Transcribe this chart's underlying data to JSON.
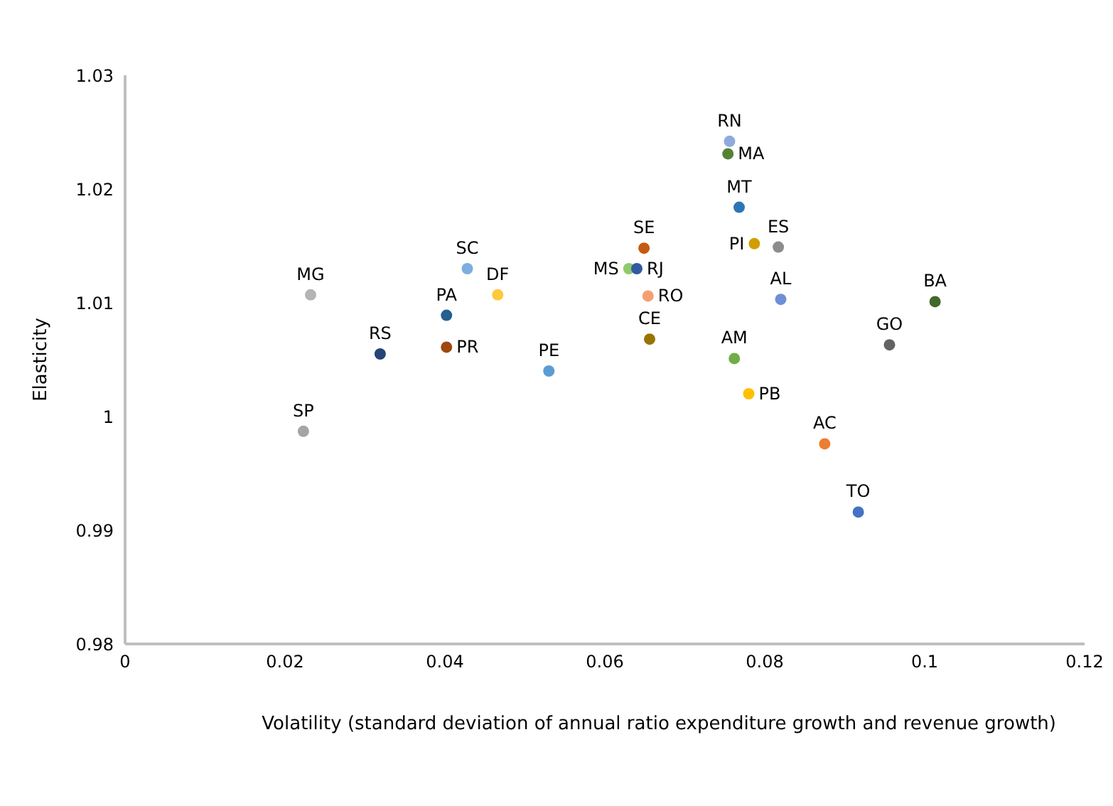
{
  "chart_data": {
    "type": "scatter",
    "xlabel": "Volatility (standard deviation of annual ratio expenditure growth and revenue growth)",
    "ylabel": "Elasticity",
    "xlim": [
      0,
      0.12
    ],
    "xticks": [
      0,
      0.02,
      0.04,
      0.06,
      0.08,
      0.1,
      0.12
    ],
    "ylim": [
      0.98,
      1.03
    ],
    "yticks": [
      0.98,
      0.99,
      1,
      1.01,
      1.02,
      1.03
    ],
    "grid": false,
    "legend": false,
    "marker": "circle",
    "series": [
      {
        "name": "SP",
        "color": "#a5a5a5",
        "x": [
          0.0223
        ],
        "values": [
          0.9987
        ]
      },
      {
        "name": "MG",
        "color": "#b4b4b4",
        "x": [
          0.0232
        ],
        "values": [
          1.0107
        ]
      },
      {
        "name": "RS",
        "color": "#264478",
        "x": [
          0.0319
        ],
        "values": [
          1.0055
        ]
      },
      {
        "name": "PA",
        "color": "#255e91",
        "x": [
          0.0402
        ],
        "values": [
          1.0089
        ]
      },
      {
        "name": "PR",
        "color": "#9e480e",
        "x": [
          0.0402
        ],
        "values": [
          1.0061
        ]
      },
      {
        "name": "SC",
        "color": "#7cafdd",
        "x": [
          0.0428
        ],
        "values": [
          1.013
        ]
      },
      {
        "name": "DF",
        "color": "#ffc93c",
        "x": [
          0.0466
        ],
        "values": [
          1.0107
        ]
      },
      {
        "name": "PE",
        "color": "#5b9bd5",
        "x": [
          0.053
        ],
        "values": [
          1.004
        ]
      },
      {
        "name": "MS",
        "color": "#8fca6e",
        "x": [
          0.063
        ],
        "values": [
          1.013
        ]
      },
      {
        "name": "RJ",
        "color": "#335aa1",
        "x": [
          0.064
        ],
        "values": [
          1.013
        ]
      },
      {
        "name": "SE",
        "color": "#c55a11",
        "x": [
          0.0649
        ],
        "values": [
          1.0148
        ]
      },
      {
        "name": "RO",
        "color": "#f4a070",
        "x": [
          0.0654
        ],
        "values": [
          1.0106
        ]
      },
      {
        "name": "CE",
        "color": "#997300",
        "x": [
          0.0656
        ],
        "values": [
          1.0068
        ]
      },
      {
        "name": "RN",
        "color": "#8faadc",
        "x": [
          0.0756
        ],
        "values": [
          1.0242
        ]
      },
      {
        "name": "MA",
        "color": "#548235",
        "x": [
          0.0754
        ],
        "values": [
          1.0231
        ]
      },
      {
        "name": "MT",
        "color": "#2e75b6",
        "x": [
          0.0768
        ],
        "values": [
          1.0184
        ]
      },
      {
        "name": "AM",
        "color": "#70ad47",
        "x": [
          0.0762
        ],
        "values": [
          1.0051
        ]
      },
      {
        "name": "PB",
        "color": "#ffc000",
        "x": [
          0.078
        ],
        "values": [
          1.002
        ]
      },
      {
        "name": "PI",
        "color": "#d19e00",
        "x": [
          0.0787
        ],
        "values": [
          1.0152
        ]
      },
      {
        "name": "ES",
        "color": "#8c8c8c",
        "x": [
          0.0817
        ],
        "values": [
          1.0149
        ]
      },
      {
        "name": "AL",
        "color": "#6d8fd6",
        "x": [
          0.082
        ],
        "values": [
          1.0103
        ]
      },
      {
        "name": "AC",
        "color": "#ed7d31",
        "x": [
          0.0875
        ],
        "values": [
          0.9976
        ]
      },
      {
        "name": "TO",
        "color": "#4472c4",
        "x": [
          0.0917
        ],
        "values": [
          0.9916
        ]
      },
      {
        "name": "GO",
        "color": "#636363",
        "x": [
          0.0956
        ],
        "values": [
          1.0063
        ]
      },
      {
        "name": "BA",
        "color": "#43682b",
        "x": [
          0.1013
        ],
        "values": [
          1.0101
        ]
      }
    ]
  }
}
